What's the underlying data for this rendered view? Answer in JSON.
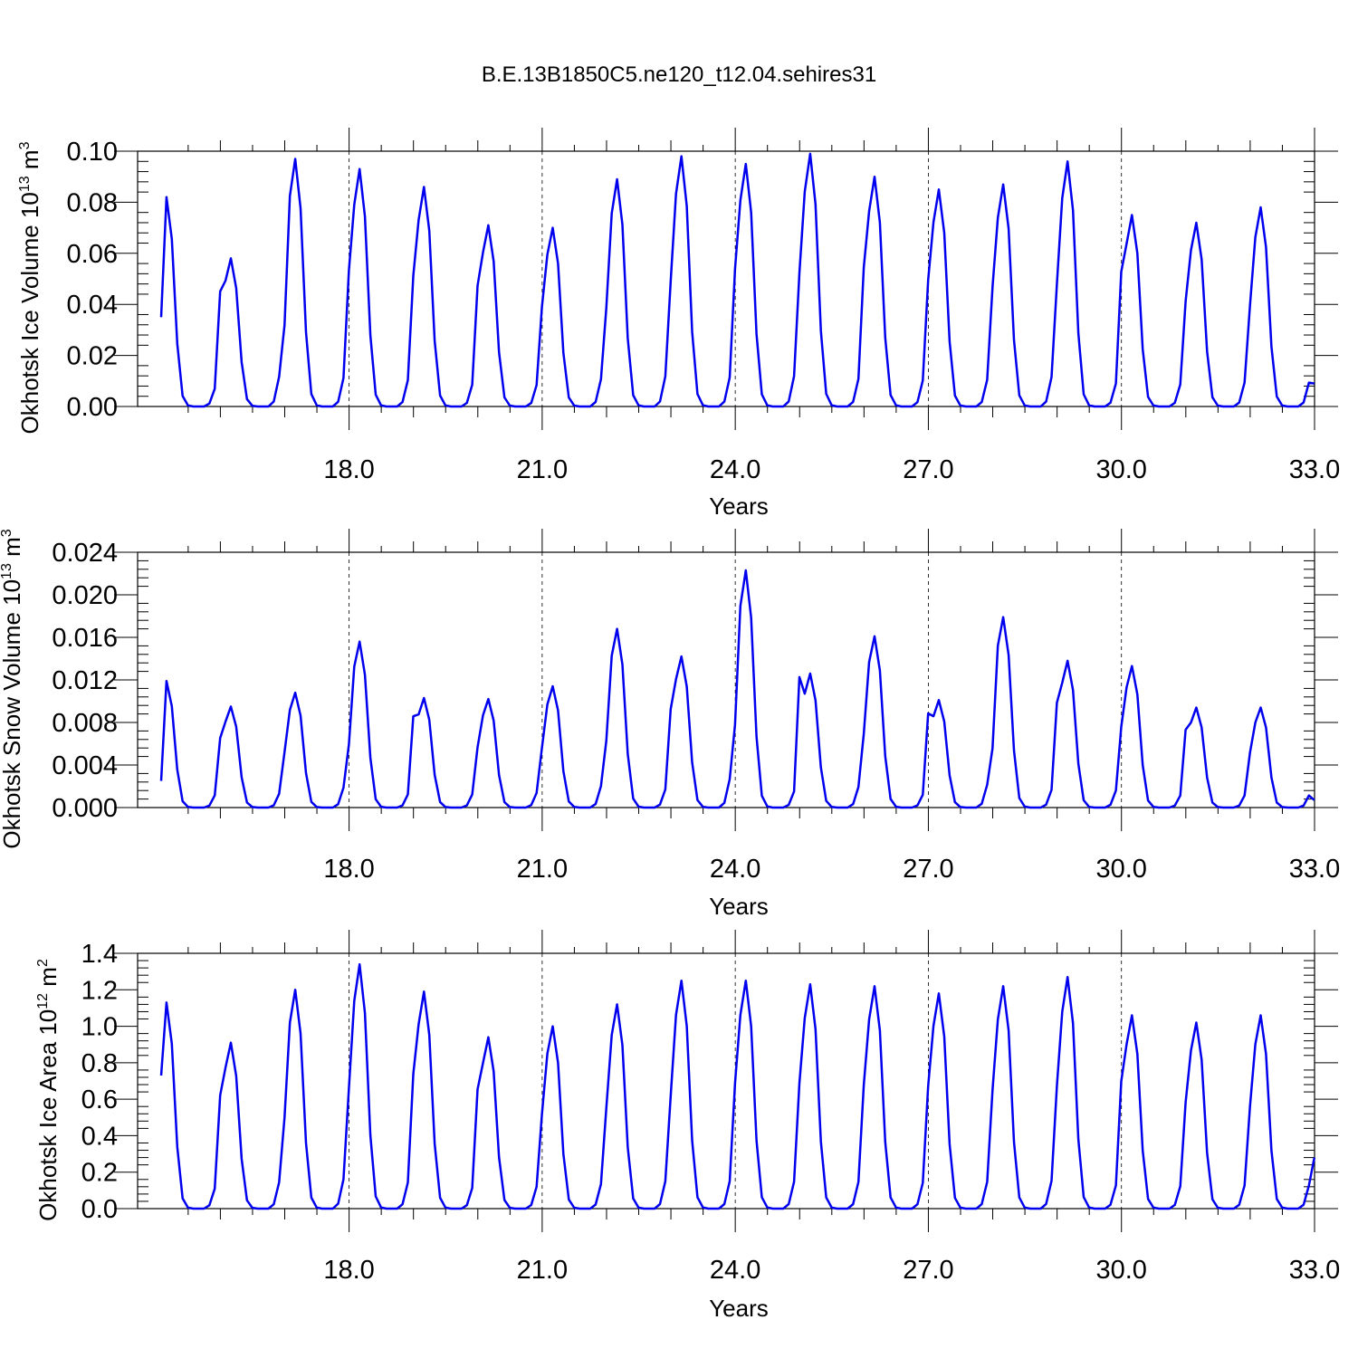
{
  "title": "B.E.13B1850C5.ne120_t12.04.sehires31",
  "colors": {
    "series": "#0000ee",
    "axis": "#000000",
    "background": "#ffffff"
  },
  "chart_data": [
    {
      "type": "line",
      "ylabel": "Okhotsk Ice Volume 10",
      "ylabel_exp": "13",
      "ylabel_unit": " m",
      "ylabel_unit_exp": "3",
      "xlabel": "Years",
      "xlim": [
        15.08,
        33.0
      ],
      "ylim": [
        0.0,
        0.1
      ],
      "xticks": [
        18.0,
        21.0,
        24.0,
        27.0,
        30.0,
        33.0
      ],
      "xtick_labels": [
        "18.0",
        "21.0",
        "24.0",
        "27.0",
        "30.0",
        "33.0"
      ],
      "yticks": [
        0.0,
        0.02,
        0.04,
        0.06,
        0.08,
        0.1
      ],
      "ytick_labels": [
        "0.00",
        "0.02",
        "0.04",
        "0.06",
        "0.08",
        "0.10"
      ],
      "grid": "dashed vertical at major x ticks",
      "series": [
        {
          "peaks": [
            0.082,
            0.058,
            0.097,
            0.093,
            0.086,
            0.071,
            0.07,
            0.089,
            0.098,
            0.095,
            0.099,
            0.09,
            0.085,
            0.087,
            0.096,
            0.075,
            0.072,
            0.078
          ],
          "start_value": 0.035,
          "end_value": 0.009
        }
      ]
    },
    {
      "type": "line",
      "ylabel": "Okhotsk Snow Volume 10",
      "ylabel_exp": "13",
      "ylabel_unit": " m",
      "ylabel_unit_exp": "3",
      "xlabel": "Years",
      "xlim": [
        15.08,
        33.0
      ],
      "ylim": [
        0.0,
        0.024
      ],
      "xticks": [
        18.0,
        21.0,
        24.0,
        27.0,
        30.0,
        33.0
      ],
      "xtick_labels": [
        "18.0",
        "21.0",
        "24.0",
        "27.0",
        "30.0",
        "33.0"
      ],
      "yticks": [
        0.0,
        0.004,
        0.008,
        0.012,
        0.016,
        0.02,
        0.024
      ],
      "ytick_labels": [
        "0.000",
        "0.004",
        "0.008",
        "0.012",
        "0.016",
        "0.020",
        "0.024"
      ],
      "grid": "dashed vertical at major x ticks",
      "series": [
        {
          "peaks": [
            0.0119,
            0.0095,
            0.0108,
            0.0156,
            0.0103,
            0.0102,
            0.0114,
            0.0168,
            0.0142,
            0.0223,
            0.0126,
            0.0161,
            0.0101,
            0.0179,
            0.0138,
            0.0133,
            0.0094,
            0.0094
          ],
          "start_value": 0.0025,
          "end_value": 0.0007
        }
      ]
    },
    {
      "type": "line",
      "ylabel": "Okhotsk Ice Area 10",
      "ylabel_exp": "12",
      "ylabel_unit": " m",
      "ylabel_unit_exp": "2",
      "xlabel": "Years",
      "xlim": [
        15.08,
        33.0
      ],
      "ylim": [
        0.0,
        1.4
      ],
      "xticks": [
        18.0,
        21.0,
        24.0,
        27.0,
        30.0,
        33.0
      ],
      "xtick_labels": [
        "18.0",
        "21.0",
        "24.0",
        "27.0",
        "30.0",
        "33.0"
      ],
      "yticks": [
        0.0,
        0.2,
        0.4,
        0.6,
        0.8,
        1.0,
        1.2,
        1.4
      ],
      "ytick_labels": [
        "0.0",
        "0.2",
        "0.4",
        "0.6",
        "0.8",
        "1.0",
        "1.2",
        "1.4"
      ],
      "grid": "dashed vertical at major x ticks",
      "series": [
        {
          "peaks": [
            1.13,
            0.91,
            1.2,
            1.34,
            1.19,
            0.94,
            1.0,
            1.12,
            1.25,
            1.25,
            1.23,
            1.22,
            1.18,
            1.22,
            1.27,
            1.06,
            1.02,
            1.06
          ],
          "start_value": 0.73,
          "end_value": 0.28
        }
      ]
    }
  ]
}
